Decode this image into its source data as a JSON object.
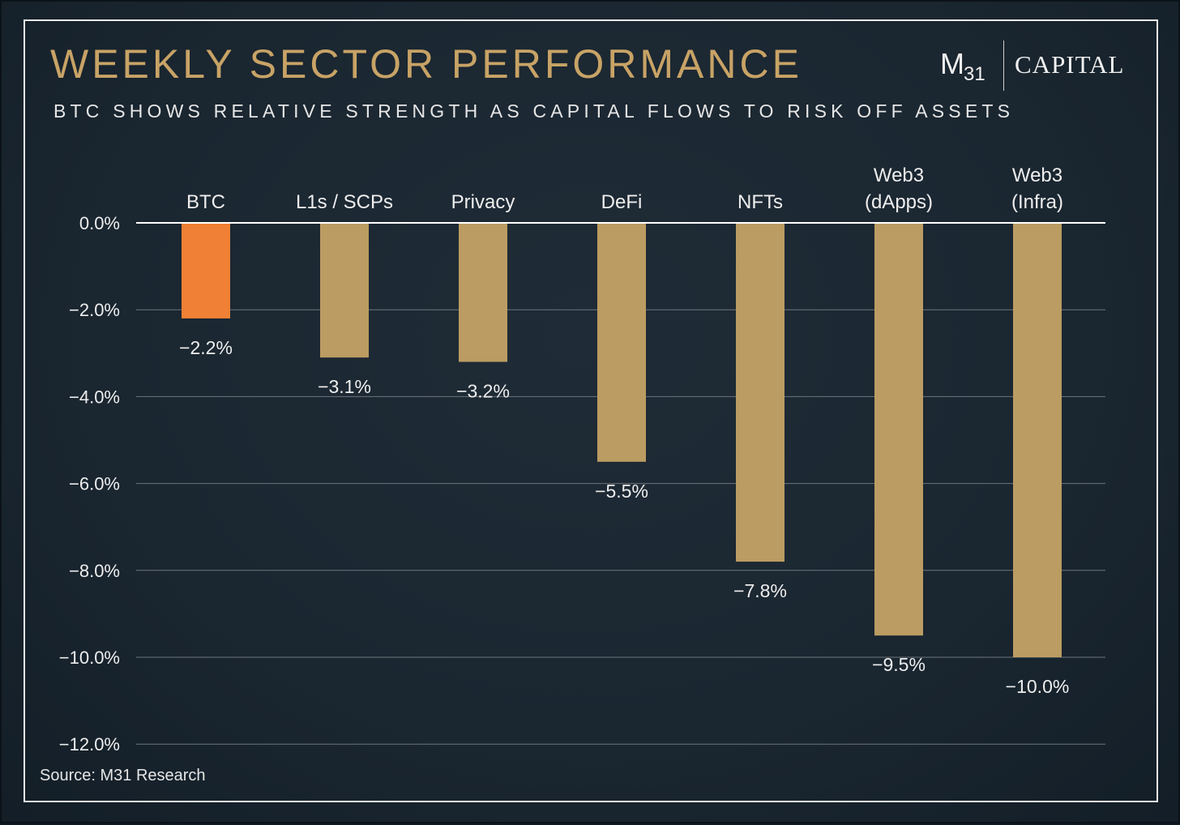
{
  "header": {
    "title": "WEEKLY SECTOR PERFORMANCE",
    "subtitle": "BTC SHOWS RELATIVE STRENGTH AS CAPITAL FLOWS TO RISK OFF ASSETS"
  },
  "logo": {
    "mark": "M",
    "mark_sub": "31",
    "word": "CAPITAL"
  },
  "footer": {
    "source": "Source: M31 Research"
  },
  "colors": {
    "title": "#c8a366",
    "highlight_bar": "#ef8035",
    "bar": "#bb9c62",
    "grid": "#6d757b",
    "zero_line": "#ffffff",
    "text": "#eeeeee"
  },
  "chart_data": {
    "type": "bar",
    "orientation": "vertical",
    "categories": [
      [
        "BTC"
      ],
      [
        "L1s / SCPs"
      ],
      [
        "Privacy"
      ],
      [
        "DeFi"
      ],
      [
        "NFTs"
      ],
      [
        "Web3",
        "(dApps)"
      ],
      [
        "Web3",
        "(Infra)"
      ]
    ],
    "values": [
      -2.2,
      -3.1,
      -3.2,
      -5.5,
      -7.8,
      -9.5,
      -10.0
    ],
    "data_labels": [
      "−2.2%",
      "−3.1%",
      "−3.2%",
      "−5.5%",
      "−7.8%",
      "−9.5%",
      "−10.0%"
    ],
    "highlight_index": 0,
    "ylim": [
      -12,
      0
    ],
    "yticks": [
      0,
      -2,
      -4,
      -6,
      -8,
      -10,
      -12
    ],
    "ytick_labels": [
      "0.0%",
      "−2.0%",
      "−4.0%",
      "−6.0%",
      "−8.0%",
      "−10.0%",
      "−12.0%"
    ],
    "category_labels_position": "top",
    "grid": true,
    "legend": false
  }
}
